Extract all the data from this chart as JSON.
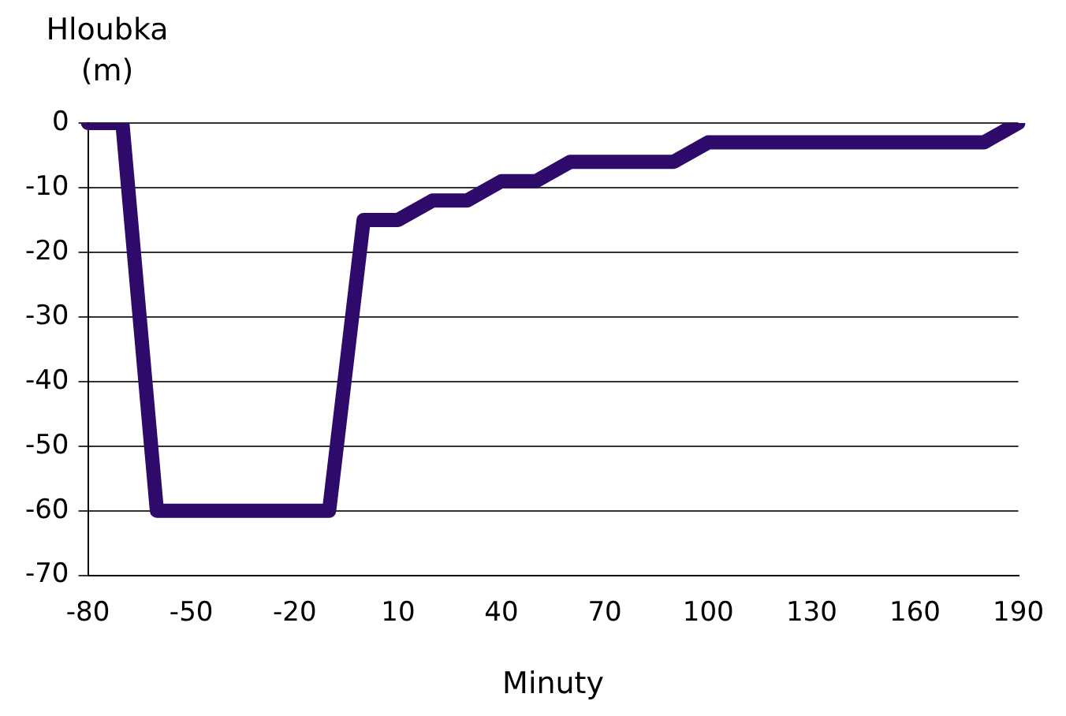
{
  "chart_data": {
    "type": "line",
    "ylabel": "Hloubka (m)",
    "xlabel": "Minuty",
    "categories": [
      "-80",
      null,
      null,
      "-50",
      null,
      null,
      "-20",
      null,
      null,
      "10",
      null,
      null,
      "40",
      null,
      null,
      "70",
      null,
      null,
      "100",
      null,
      null,
      "130",
      null,
      null,
      "160",
      null,
      null,
      "190"
    ],
    "series": [
      {
        "color": "#2e0a6b",
        "values": [
          0,
          0,
          -60,
          -60,
          -60,
          -60,
          -60,
          -60,
          -15,
          -15,
          -12,
          -12,
          -9,
          -9,
          -6,
          -6,
          -6,
          -6,
          -3,
          -3,
          -3,
          -3,
          -3,
          -3,
          -3,
          -3,
          -3,
          0
        ]
      }
    ],
    "ylim": [
      -70,
      0
    ],
    "yticks": [
      -70,
      -60,
      -50,
      -40,
      -30,
      -20,
      -10,
      0
    ],
    "grid": "y",
    "legend": false,
    "marker": "none"
  }
}
